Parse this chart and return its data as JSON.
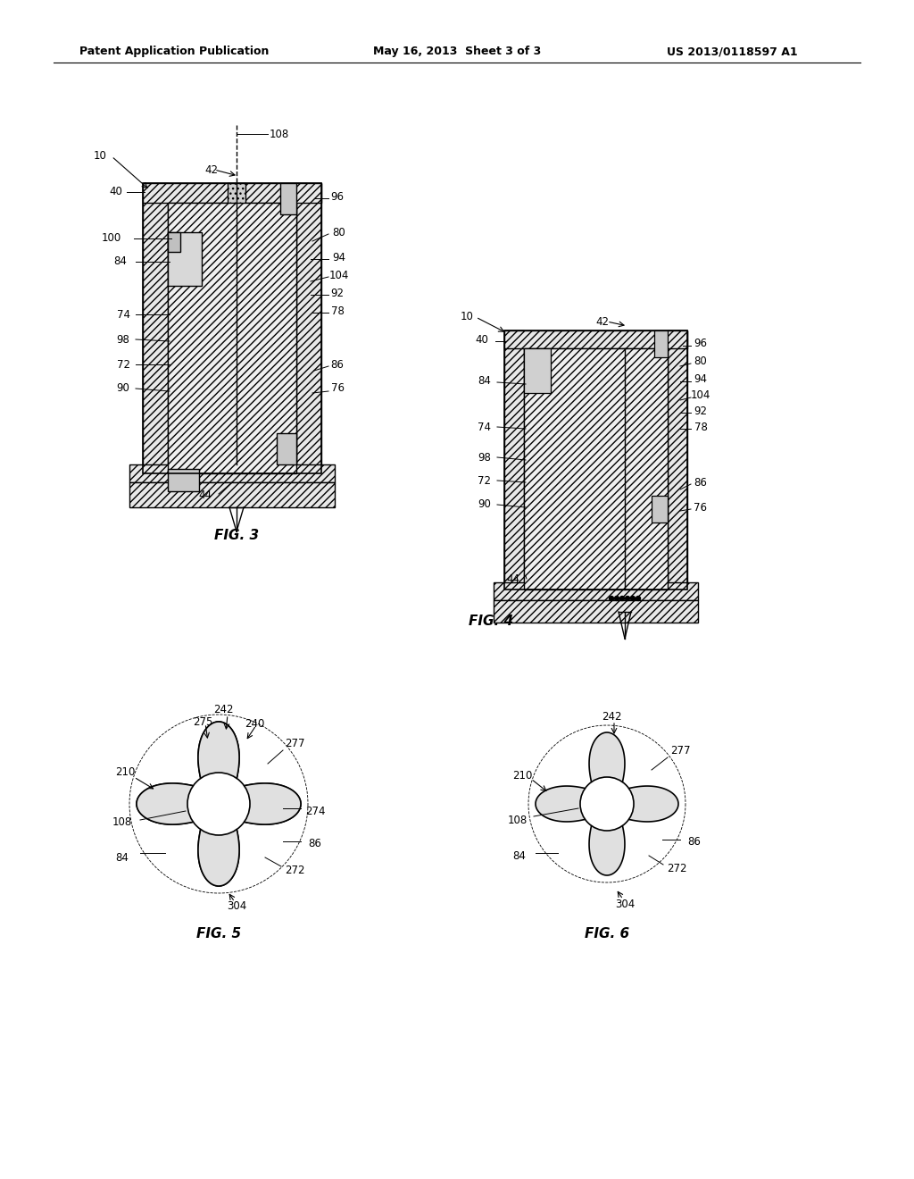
{
  "bg_color": "#ffffff",
  "header_left": "Patent Application Publication",
  "header_center": "May 16, 2013  Sheet 3 of 3",
  "header_right": "US 2013/0118597 A1",
  "fig3_label": "FIG. 3",
  "fig4_label": "FIG. 4",
  "fig5_label": "FIG. 5",
  "fig6_label": "FIG. 6",
  "line_color": "#000000",
  "hatch_color": "#000000",
  "text_color": "#000000"
}
